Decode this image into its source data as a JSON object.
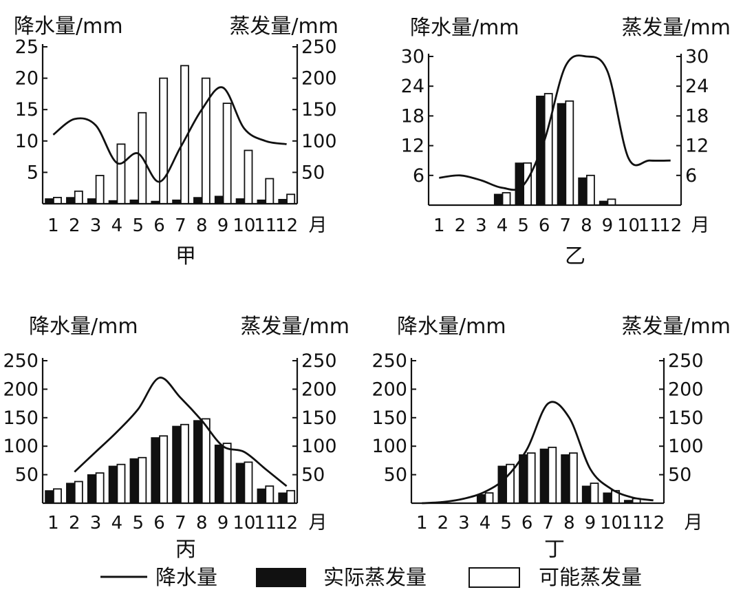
{
  "chart_data": [
    {
      "type": "bar+line",
      "name": "甲",
      "left_title": "降水量/mm",
      "right_title": "蒸发量/mm",
      "x_unit": "月",
      "months": [
        "1",
        "2",
        "3",
        "4",
        "5",
        "6",
        "7",
        "8",
        "9",
        "10",
        "11",
        "12"
      ],
      "left_ticks": [
        "5",
        "10",
        "15",
        "20",
        "25"
      ],
      "right_ticks": [
        "50",
        "100",
        "150",
        "200",
        "250"
      ],
      "left_range": [
        0,
        25
      ],
      "right_range": [
        0,
        250
      ],
      "precipitation": [
        11,
        13.5,
        12.5,
        6.5,
        8,
        3.5,
        9,
        15,
        18.5,
        12,
        10,
        9.5
      ],
      "actual_evaporation": [
        8,
        10,
        8,
        5,
        6,
        4,
        6,
        10,
        12,
        8,
        6,
        7
      ],
      "potential_evaporation": [
        10,
        20,
        45,
        95,
        145,
        200,
        220,
        200,
        160,
        85,
        40,
        15
      ]
    },
    {
      "type": "bar+line",
      "name": "乙",
      "left_title": "降水量/mm",
      "right_title": "蒸发量/mm",
      "x_unit": "月",
      "months": [
        "1",
        "2",
        "3",
        "4",
        "5",
        "6",
        "7",
        "8",
        "9",
        "10",
        "11",
        "12"
      ],
      "left_ticks": [
        "6",
        "12",
        "18",
        "24",
        "30"
      ],
      "right_ticks": [
        "6",
        "12",
        "18",
        "24",
        "30"
      ],
      "left_range": [
        0,
        30
      ],
      "right_range": [
        0,
        30
      ],
      "precipitation": [
        5.5,
        6,
        5,
        3.5,
        4,
        13,
        28,
        30,
        27,
        9.5,
        9,
        9
      ],
      "actual_evaporation": [
        0,
        0,
        0,
        2.2,
        8.5,
        22,
        20.5,
        5.5,
        0.8,
        0,
        0,
        0
      ],
      "potential_evaporation": [
        0,
        0,
        0,
        2.5,
        8.5,
        22.5,
        21,
        6,
        1.2,
        0,
        0,
        0
      ]
    },
    {
      "type": "bar+line",
      "name": "丙",
      "left_title": "降水量/mm",
      "right_title": "蒸发量/mm",
      "x_unit": "月",
      "months": [
        "1",
        "2",
        "3",
        "4",
        "5",
        "6",
        "7",
        "8",
        "9",
        "10",
        "11",
        "12"
      ],
      "left_ticks": [
        "50",
        "100",
        "150",
        "200",
        "250"
      ],
      "right_ticks": [
        "50",
        "100",
        "150",
        "200",
        "250"
      ],
      "left_range": [
        0,
        250
      ],
      "right_range": [
        0,
        250
      ],
      "precipitation": [
        null,
        55,
        90,
        125,
        165,
        220,
        185,
        145,
        100,
        90,
        60,
        30
      ],
      "actual_evaporation": [
        22,
        35,
        50,
        65,
        78,
        115,
        135,
        145,
        102,
        70,
        25,
        18
      ],
      "potential_evaporation": [
        25,
        38,
        53,
        68,
        80,
        118,
        138,
        148,
        105,
        72,
        30,
        22
      ]
    },
    {
      "type": "bar+line",
      "name": "丁",
      "left_title": "降水量/mm",
      "right_title": "蒸发量/mm",
      "x_unit": "月",
      "months": [
        "1",
        "2",
        "3",
        "4",
        "5",
        "6",
        "7",
        "8",
        "9",
        "10",
        "11",
        "12"
      ],
      "left_ticks": [
        "50",
        "100",
        "150",
        "200",
        "250"
      ],
      "right_ticks": [
        "50",
        "100",
        "150",
        "200",
        "250"
      ],
      "left_range": [
        0,
        250
      ],
      "right_range": [
        0,
        250
      ],
      "precipitation": [
        0,
        2,
        8,
        20,
        45,
        95,
        175,
        150,
        60,
        25,
        10,
        5
      ],
      "actual_evaporation": [
        0,
        0,
        0,
        15,
        65,
        85,
        95,
        85,
        30,
        18,
        5,
        0
      ],
      "potential_evaporation": [
        0,
        0,
        0,
        18,
        68,
        88,
        98,
        88,
        35,
        22,
        8,
        0
      ]
    }
  ],
  "legend": {
    "line_label": "降水量",
    "actual_label": "实际蒸发量",
    "potential_label": "可能蒸发量"
  }
}
